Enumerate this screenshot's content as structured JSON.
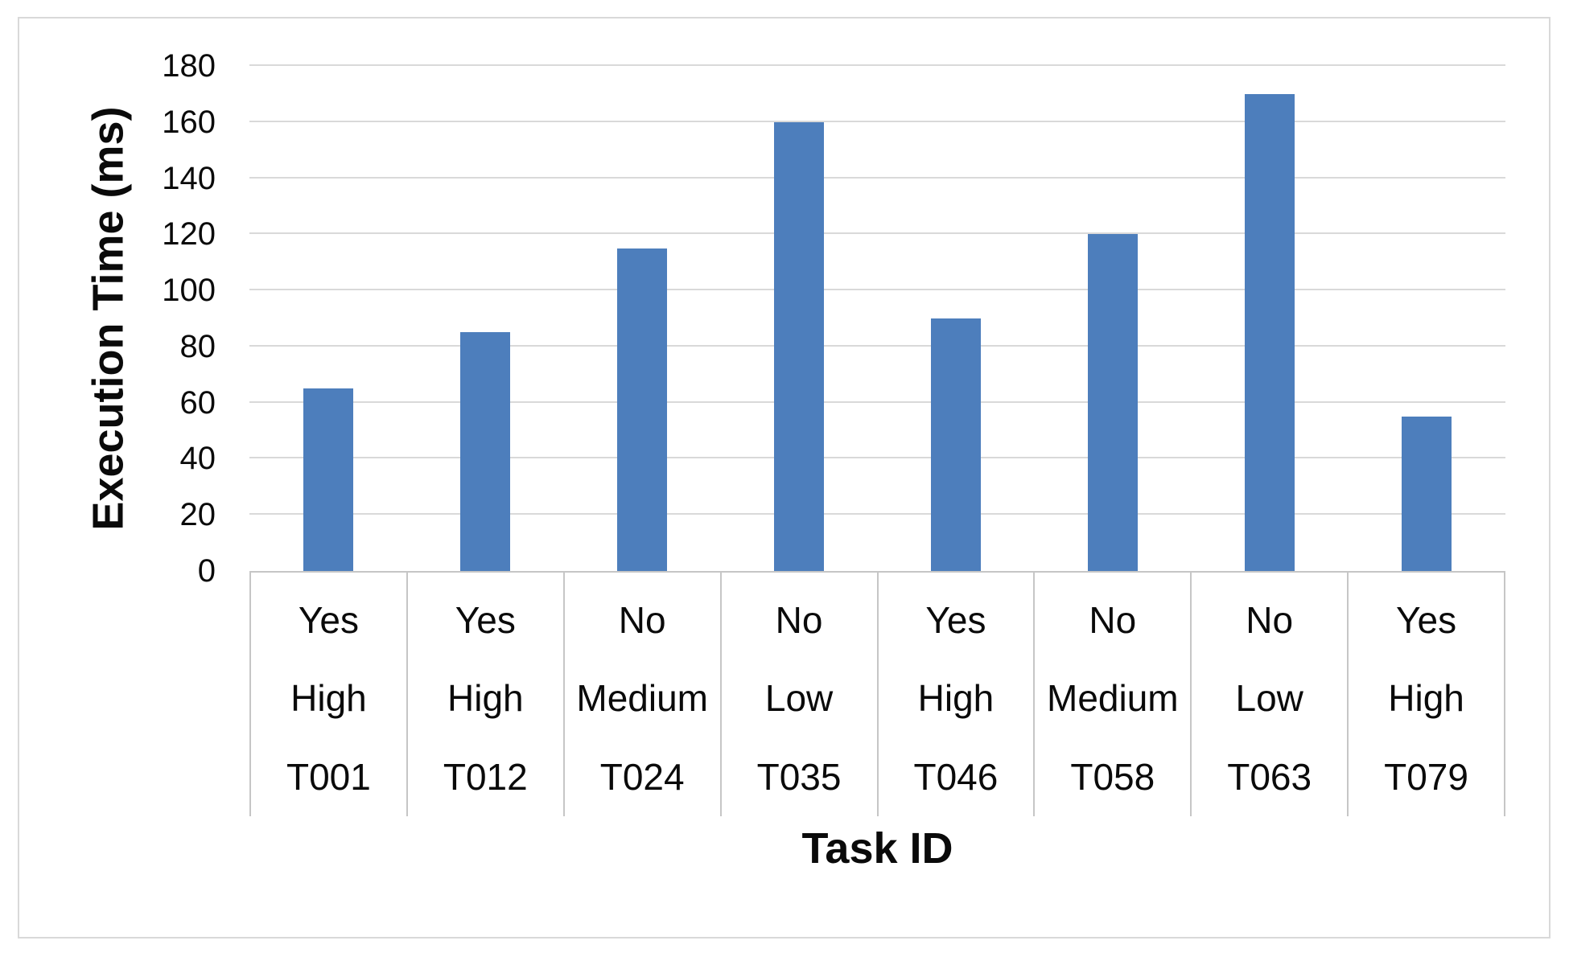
{
  "chart_data": {
    "type": "bar",
    "title": "",
    "xlabel": "Task ID",
    "ylabel": "Execution Time (ms)",
    "ylim": [
      0,
      180
    ],
    "yticks": [
      0,
      20,
      40,
      60,
      80,
      100,
      120,
      140,
      160,
      180
    ],
    "grid": "horizontal",
    "legend": "none",
    "category_rows": [
      [
        "Yes",
        "Yes",
        "No",
        "No",
        "Yes",
        "No",
        "No",
        "Yes"
      ],
      [
        "High",
        "High",
        "Medium",
        "Low",
        "High",
        "Medium",
        "Low",
        "High"
      ],
      [
        "T001",
        "T012",
        "T024",
        "T035",
        "T046",
        "T058",
        "T063",
        "T079"
      ]
    ],
    "values": [
      65,
      85,
      115,
      160,
      90,
      120,
      170,
      55
    ],
    "bar_color": "#4d7ebc",
    "gridline_color": "#d9d9d9",
    "axis_line_color": "#c6c6c6",
    "figure_border_color": "#d9d9d9"
  }
}
